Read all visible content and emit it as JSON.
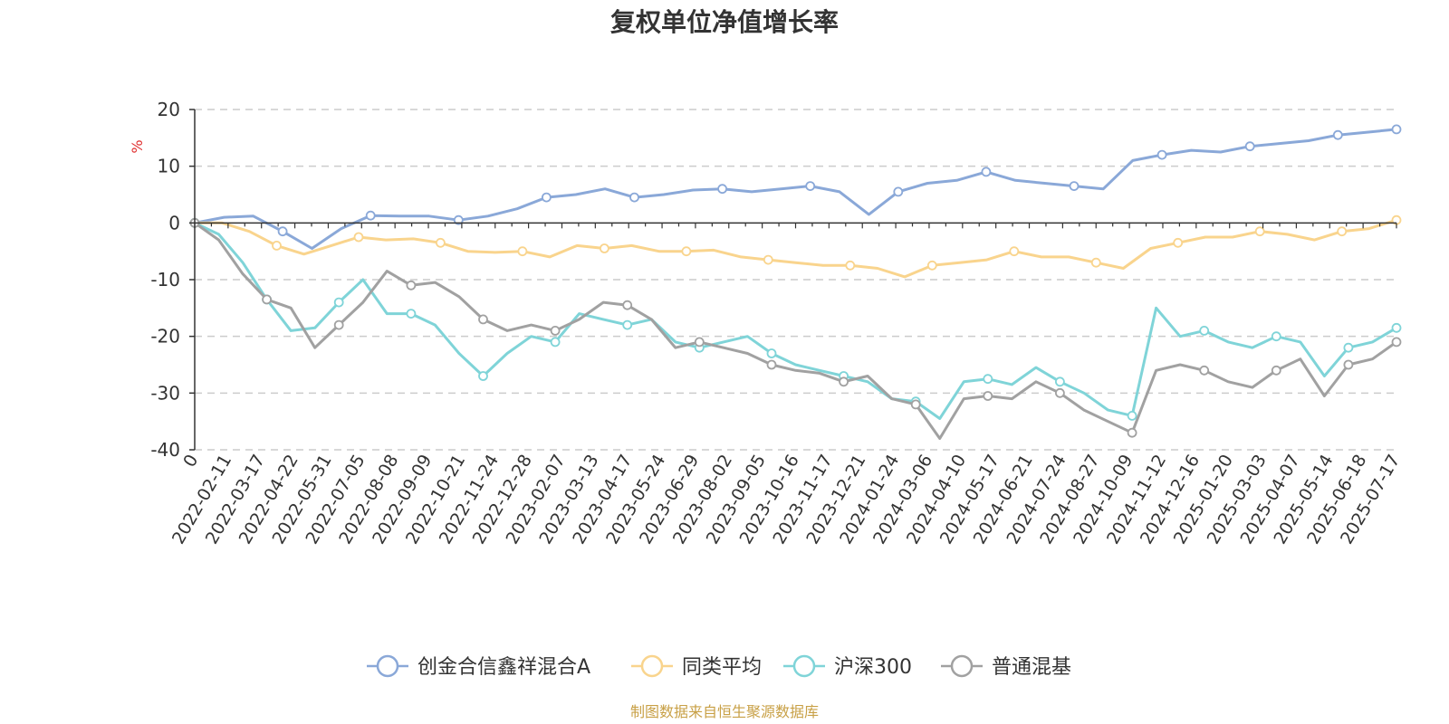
{
  "chart_data": {
    "type": "line",
    "title": "复权单位净值增长率",
    "ylabel": "%",
    "ylim": [
      -40,
      20
    ],
    "yticks": [
      -40,
      -30,
      -20,
      -10,
      0,
      10,
      20
    ],
    "x_start_label": "0",
    "x_labels": [
      "2022-02-11",
      "2022-03-17",
      "2022-04-22",
      "2022-05-31",
      "2022-07-05",
      "2022-08-08",
      "2022-09-09",
      "2022-10-21",
      "2022-11-24",
      "2022-12-28",
      "2023-02-07",
      "2023-03-13",
      "2023-04-17",
      "2023-05-24",
      "2023-06-29",
      "2023-08-02",
      "2023-09-05",
      "2023-10-16",
      "2023-11-17",
      "2023-12-21",
      "2024-01-24",
      "2024-03-06",
      "2024-04-10",
      "2024-05-17",
      "2024-06-21",
      "2024-07-24",
      "2024-08-27",
      "2024-10-09",
      "2024-11-12",
      "2024-12-16",
      "2025-01-20",
      "2025-03-03",
      "2025-04-07",
      "2025-05-14",
      "2025-06-18",
      "2025-07-17"
    ],
    "grid": "dashed horizontal",
    "legend_position": "bottom-center",
    "series": [
      {
        "name": "创金合信鑫祥混合A",
        "color": "#8aa8d8",
        "values": [
          0,
          1,
          1.2,
          -1.5,
          -4.5,
          -1,
          1.3,
          1.2,
          1.2,
          0.5,
          1.2,
          2.5,
          4.5,
          5,
          6,
          4.5,
          5,
          5.8,
          6,
          5.5,
          6,
          6.5,
          5.5,
          1.5,
          5.5,
          7,
          7.5,
          9,
          7.5,
          7,
          6.5,
          6,
          11,
          12,
          12.8,
          12.5,
          13.5,
          14,
          14.5,
          15.5,
          16,
          16.5
        ]
      },
      {
        "name": "同类平均",
        "color": "#f9d48d",
        "values": [
          0,
          0,
          -1.5,
          -4,
          -5.5,
          -4,
          -2.5,
          -3,
          -2.8,
          -3.5,
          -5,
          -5.2,
          -5,
          -6,
          -4,
          -4.5,
          -4,
          -5,
          -5,
          -4.8,
          -6,
          -6.5,
          -7,
          -7.5,
          -7.5,
          -8,
          -9.5,
          -7.5,
          -7,
          -6.5,
          -5,
          -6,
          -6,
          -7,
          -8,
          -4.5,
          -3.5,
          -2.5,
          -2.5,
          -1.5,
          -2,
          -3,
          -1.5,
          -1,
          0.5
        ]
      },
      {
        "name": "沪深300",
        "color": "#7fd4d8",
        "values": [
          0,
          -2,
          -7,
          -13.5,
          -19,
          -18.5,
          -14,
          -10,
          -16,
          -16,
          -18,
          -23,
          -27,
          -23,
          -20,
          -21,
          -16,
          -17,
          -18,
          -17,
          -21,
          -22,
          -21,
          -20,
          -23,
          -25,
          -26,
          -27,
          -28,
          -31,
          -31.5,
          -34.5,
          -28,
          -27.5,
          -28.5,
          -25.5,
          -28,
          -30,
          -33,
          -34,
          -15,
          -20,
          -19,
          -21,
          -22,
          -20,
          -21,
          -27,
          -22,
          -21,
          -18.5
        ]
      },
      {
        "name": "普通混基",
        "color": "#a1a1a1",
        "values": [
          0,
          -3,
          -9,
          -13.5,
          -15,
          -22,
          -18,
          -14,
          -8.5,
          -11,
          -10.5,
          -13,
          -17,
          -19,
          -18,
          -19,
          -17,
          -14,
          -14.5,
          -17,
          -22,
          -21,
          -22,
          -23,
          -25,
          -26,
          -26.5,
          -28,
          -27,
          -31,
          -32,
          -38,
          -31,
          -30.5,
          -31,
          -28,
          -30,
          -33,
          -35,
          -37,
          -26,
          -25,
          -26,
          -28,
          -29,
          -26,
          -24,
          -30.5,
          -25,
          -24,
          -21
        ]
      }
    ]
  },
  "legend": {
    "items": [
      {
        "label": "创金合信鑫祥混合A"
      },
      {
        "label": "同类平均"
      },
      {
        "label": "沪深300"
      },
      {
        "label": "普通混基"
      }
    ]
  },
  "footer": {
    "source": "制图数据来自恒生聚源数据库",
    "source_color": "#c8a046"
  },
  "colors": {
    "unit_label": "#e03030",
    "axis": "#333333",
    "grid": "#cccccc"
  }
}
